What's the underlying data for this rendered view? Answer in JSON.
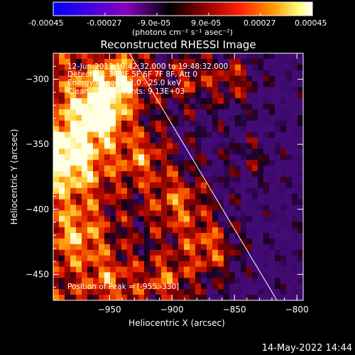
{
  "colorbar": {
    "tick_labels": [
      "-0.00045",
      "-0.00027",
      "-9.0e-05",
      "9.0e-05",
      "0.00027",
      "0.00045"
    ],
    "unit_label": "(photons cm⁻² s⁻¹ asec⁻²)",
    "colors": [
      "#0000ff",
      "#8a00c0",
      "#000000",
      "#8b0000",
      "#ff2000",
      "#ff9a00",
      "#ffff80",
      "#ffffff"
    ]
  },
  "chart_data": {
    "type": "heatmap",
    "title": "Reconstructed RHESSI Image",
    "xlabel": "Heliocentric X (arcsec)",
    "ylabel": "Heliocentric Y (arcsec)",
    "xlim": [
      -995,
      -795
    ],
    "ylim": [
      -470,
      -280
    ],
    "x_ticks": [
      -950,
      -900,
      -850,
      -800
    ],
    "y_ticks": [
      -300,
      -350,
      -400,
      -450
    ],
    "grid": false,
    "limb_line": {
      "from": [
        -934,
        -280
      ],
      "to": [
        -816,
        -470
      ]
    },
    "annotations": [
      "12-Jun-2013 19:42:32.000 to 19:48:32.000",
      "Detectors: 3F 4F 5F 6F 7F 8F, Att 0",
      "Energy Range: 12.0 - 25.0 keV",
      "Clean    Total counts: 9.13E+03",
      "Position of Peak = [-955,-330]"
    ],
    "peak": [
      -955,
      -330
    ]
  },
  "footer": {
    "timestamp": "14-May-2022 14:44"
  }
}
